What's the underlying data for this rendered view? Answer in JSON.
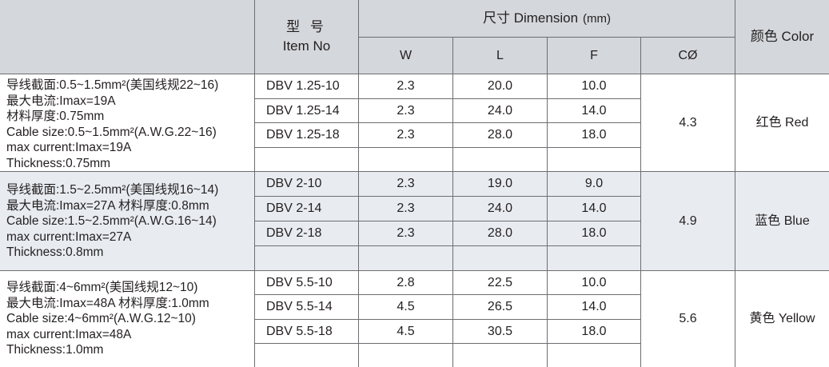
{
  "header": {
    "model_cn": "型 号",
    "model_en": "Item No",
    "dimension": "尺寸 Dimension",
    "dimension_unit": "(mm)",
    "col_w": "W",
    "col_l": "L",
    "col_f": "F",
    "col_c": "CØ",
    "color": "颜色 Color"
  },
  "groups": [
    {
      "description": [
        "导线截面:0.5~1.5mm²(美国线规22~16)",
        "最大电流:Imax=19A",
        "材料厚度:0.75mm",
        "Cable size:0.5~1.5mm²(A.W.G.22~16)",
        "max current:Imax=19A",
        "Thickness:0.75mm"
      ],
      "c_diameter": "4.3",
      "color": "红色 Red",
      "rows": [
        {
          "item": "DBV 1.25-10",
          "w": "2.3",
          "l": "20.0",
          "f": "10.0"
        },
        {
          "item": "DBV 1.25-14",
          "w": "2.3",
          "l": "24.0",
          "f": "14.0"
        },
        {
          "item": "DBV 1.25-18",
          "w": "2.3",
          "l": "28.0",
          "f": "18.0"
        }
      ]
    },
    {
      "description": [
        "导线截面:1.5~2.5mm²(美国线规16~14)",
        "最大电流:Imax=27A   材料厚度:0.8mm",
        "Cable size:1.5~2.5mm²(A.W.G.16~14)",
        "max current:Imax=27A",
        "Thickness:0.8mm"
      ],
      "c_diameter": "4.9",
      "color": "蓝色 Blue",
      "rows": [
        {
          "item": "DBV 2-10",
          "w": "2.3",
          "l": "19.0",
          "f": "9.0"
        },
        {
          "item": "DBV 2-14",
          "w": "2.3",
          "l": "24.0",
          "f": "14.0"
        },
        {
          "item": "DBV 2-18",
          "w": "2.3",
          "l": "28.0",
          "f": "18.0"
        }
      ]
    },
    {
      "description": [
        "导线截面:4~6mm²(美国线规12~10)",
        "最大电流:Imax=48A   材料厚度:1.0mm",
        "Cable size:4~6mm²(A.W.G.12~10)",
        "max current:Imax=48A",
        "Thickness:1.0mm"
      ],
      "c_diameter": "5.6",
      "color": "黄色 Yellow",
      "rows": [
        {
          "item": "DBV 5.5-10",
          "w": "2.8",
          "l": "22.5",
          "f": "10.0"
        },
        {
          "item": "DBV 5.5-14",
          "w": "4.5",
          "l": "26.5",
          "f": "14.0"
        },
        {
          "item": "DBV 5.5-18",
          "w": "4.5",
          "l": "30.5",
          "f": "18.0"
        }
      ]
    }
  ]
}
